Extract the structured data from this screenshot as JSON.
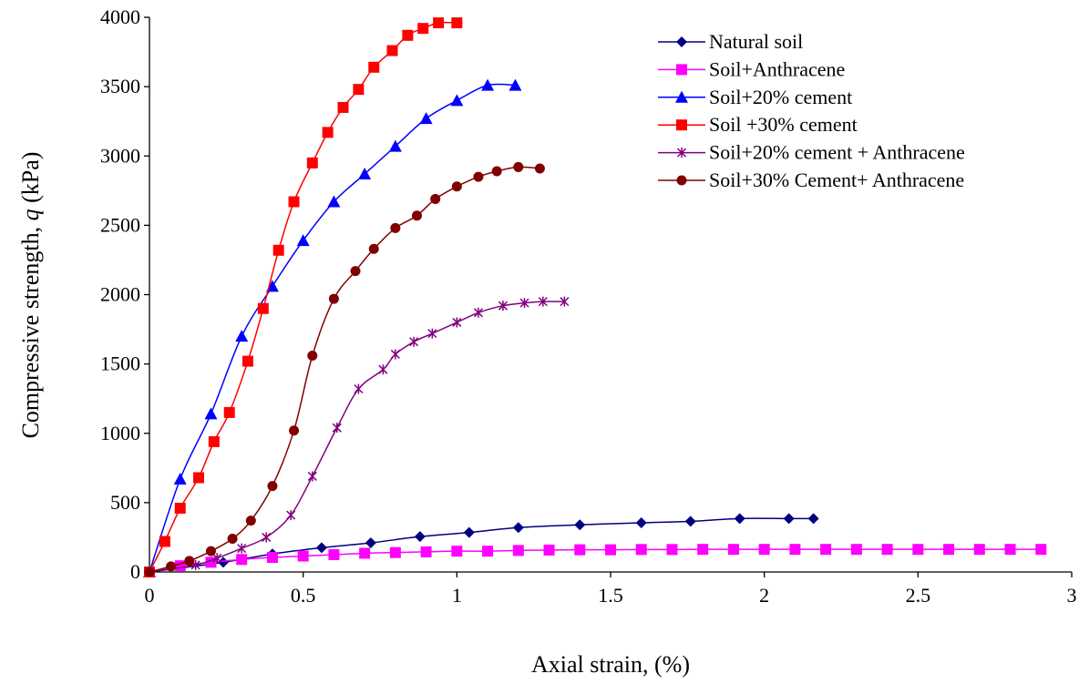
{
  "chart_data": {
    "type": "line",
    "title": "",
    "xlabel": "Axial strain, (%)",
    "ylabel_parts": [
      "Compressive strength, ",
      "q",
      " (kPa)"
    ],
    "xlim": [
      0,
      3
    ],
    "ylim": [
      0,
      4000
    ],
    "xticks": [
      0,
      0.5,
      1,
      1.5,
      2,
      2.5,
      3
    ],
    "xtick_labels": [
      "0",
      "0.5",
      "1",
      "1.5",
      "2",
      "2.5",
      "3"
    ],
    "yticks": [
      0,
      500,
      1000,
      1500,
      2000,
      2500,
      3000,
      3500,
      4000
    ],
    "ytick_labels": [
      "0",
      "500",
      "1000",
      "1500",
      "2000",
      "2500",
      "3000",
      "3500",
      "4000"
    ],
    "grid": false,
    "legend_position": "top-right",
    "series": [
      {
        "name": "Natural soil",
        "color": "#000080",
        "marker": "diamond",
        "points": [
          [
            0,
            0
          ],
          [
            0.24,
            70
          ],
          [
            0.4,
            130
          ],
          [
            0.56,
            175
          ],
          [
            0.72,
            210
          ],
          [
            0.88,
            255
          ],
          [
            1.04,
            285
          ],
          [
            1.2,
            320
          ],
          [
            1.4,
            340
          ],
          [
            1.6,
            355
          ],
          [
            1.76,
            365
          ],
          [
            1.92,
            385
          ],
          [
            2.08,
            385
          ],
          [
            2.16,
            385
          ]
        ]
      },
      {
        "name": "Soil+Anthracene",
        "color": "#ff00ff",
        "marker": "square",
        "points": [
          [
            0,
            0
          ],
          [
            0.1,
            45
          ],
          [
            0.2,
            70
          ],
          [
            0.3,
            90
          ],
          [
            0.4,
            105
          ],
          [
            0.5,
            115
          ],
          [
            0.6,
            125
          ],
          [
            0.7,
            135
          ],
          [
            0.8,
            140
          ],
          [
            0.9,
            145
          ],
          [
            1.0,
            150
          ],
          [
            1.1,
            150
          ],
          [
            1.2,
            155
          ],
          [
            1.3,
            158
          ],
          [
            1.4,
            160
          ],
          [
            1.5,
            160
          ],
          [
            1.6,
            162
          ],
          [
            1.7,
            162
          ],
          [
            1.8,
            163
          ],
          [
            1.9,
            163
          ],
          [
            2.0,
            163
          ],
          [
            2.1,
            163
          ],
          [
            2.2,
            163
          ],
          [
            2.3,
            163
          ],
          [
            2.4,
            163
          ],
          [
            2.5,
            163
          ],
          [
            2.6,
            163
          ],
          [
            2.7,
            163
          ],
          [
            2.8,
            163
          ],
          [
            2.9,
            163
          ]
        ]
      },
      {
        "name": "Soil+20% cement",
        "color": "#0000ff",
        "marker": "triangle",
        "points": [
          [
            0,
            0
          ],
          [
            0.1,
            670
          ],
          [
            0.2,
            1140
          ],
          [
            0.3,
            1700
          ],
          [
            0.4,
            2060
          ],
          [
            0.5,
            2390
          ],
          [
            0.6,
            2670
          ],
          [
            0.7,
            2870
          ],
          [
            0.8,
            3070
          ],
          [
            0.9,
            3270
          ],
          [
            1.0,
            3400
          ],
          [
            1.1,
            3510
          ],
          [
            1.19,
            3510
          ]
        ]
      },
      {
        "name": "Soil +30% cement",
        "color": "#ff0000",
        "marker": "square",
        "points": [
          [
            0,
            0
          ],
          [
            0.05,
            220
          ],
          [
            0.1,
            460
          ],
          [
            0.16,
            680
          ],
          [
            0.21,
            940
          ],
          [
            0.26,
            1150
          ],
          [
            0.32,
            1520
          ],
          [
            0.37,
            1900
          ],
          [
            0.42,
            2320
          ],
          [
            0.47,
            2670
          ],
          [
            0.53,
            2950
          ],
          [
            0.58,
            3170
          ],
          [
            0.63,
            3350
          ],
          [
            0.68,
            3480
          ],
          [
            0.73,
            3640
          ],
          [
            0.79,
            3760
          ],
          [
            0.84,
            3870
          ],
          [
            0.89,
            3920
          ],
          [
            0.94,
            3960
          ],
          [
            1.0,
            3960
          ]
        ]
      },
      {
        "name": "Soil+20% cement + Anthracene",
        "color": "#800080",
        "marker": "star",
        "points": [
          [
            0,
            0
          ],
          [
            0.15,
            50
          ],
          [
            0.22,
            100
          ],
          [
            0.3,
            170
          ],
          [
            0.38,
            250
          ],
          [
            0.46,
            410
          ],
          [
            0.53,
            690
          ],
          [
            0.61,
            1040
          ],
          [
            0.68,
            1320
          ],
          [
            0.76,
            1460
          ],
          [
            0.8,
            1570
          ],
          [
            0.86,
            1660
          ],
          [
            0.92,
            1720
          ],
          [
            1.0,
            1800
          ],
          [
            1.07,
            1870
          ],
          [
            1.15,
            1920
          ],
          [
            1.22,
            1940
          ],
          [
            1.28,
            1950
          ],
          [
            1.35,
            1950
          ]
        ]
      },
      {
        "name": "Soil+30% Cement+ Anthracene",
        "color": "#800000",
        "marker": "circle",
        "points": [
          [
            0,
            0
          ],
          [
            0.07,
            40
          ],
          [
            0.13,
            80
          ],
          [
            0.2,
            150
          ],
          [
            0.27,
            240
          ],
          [
            0.33,
            370
          ],
          [
            0.4,
            620
          ],
          [
            0.47,
            1020
          ],
          [
            0.53,
            1560
          ],
          [
            0.6,
            1970
          ],
          [
            0.67,
            2170
          ],
          [
            0.73,
            2330
          ],
          [
            0.8,
            2480
          ],
          [
            0.87,
            2570
          ],
          [
            0.93,
            2690
          ],
          [
            1.0,
            2780
          ],
          [
            1.07,
            2850
          ],
          [
            1.13,
            2890
          ],
          [
            1.2,
            2920
          ],
          [
            1.27,
            2910
          ]
        ]
      }
    ]
  }
}
